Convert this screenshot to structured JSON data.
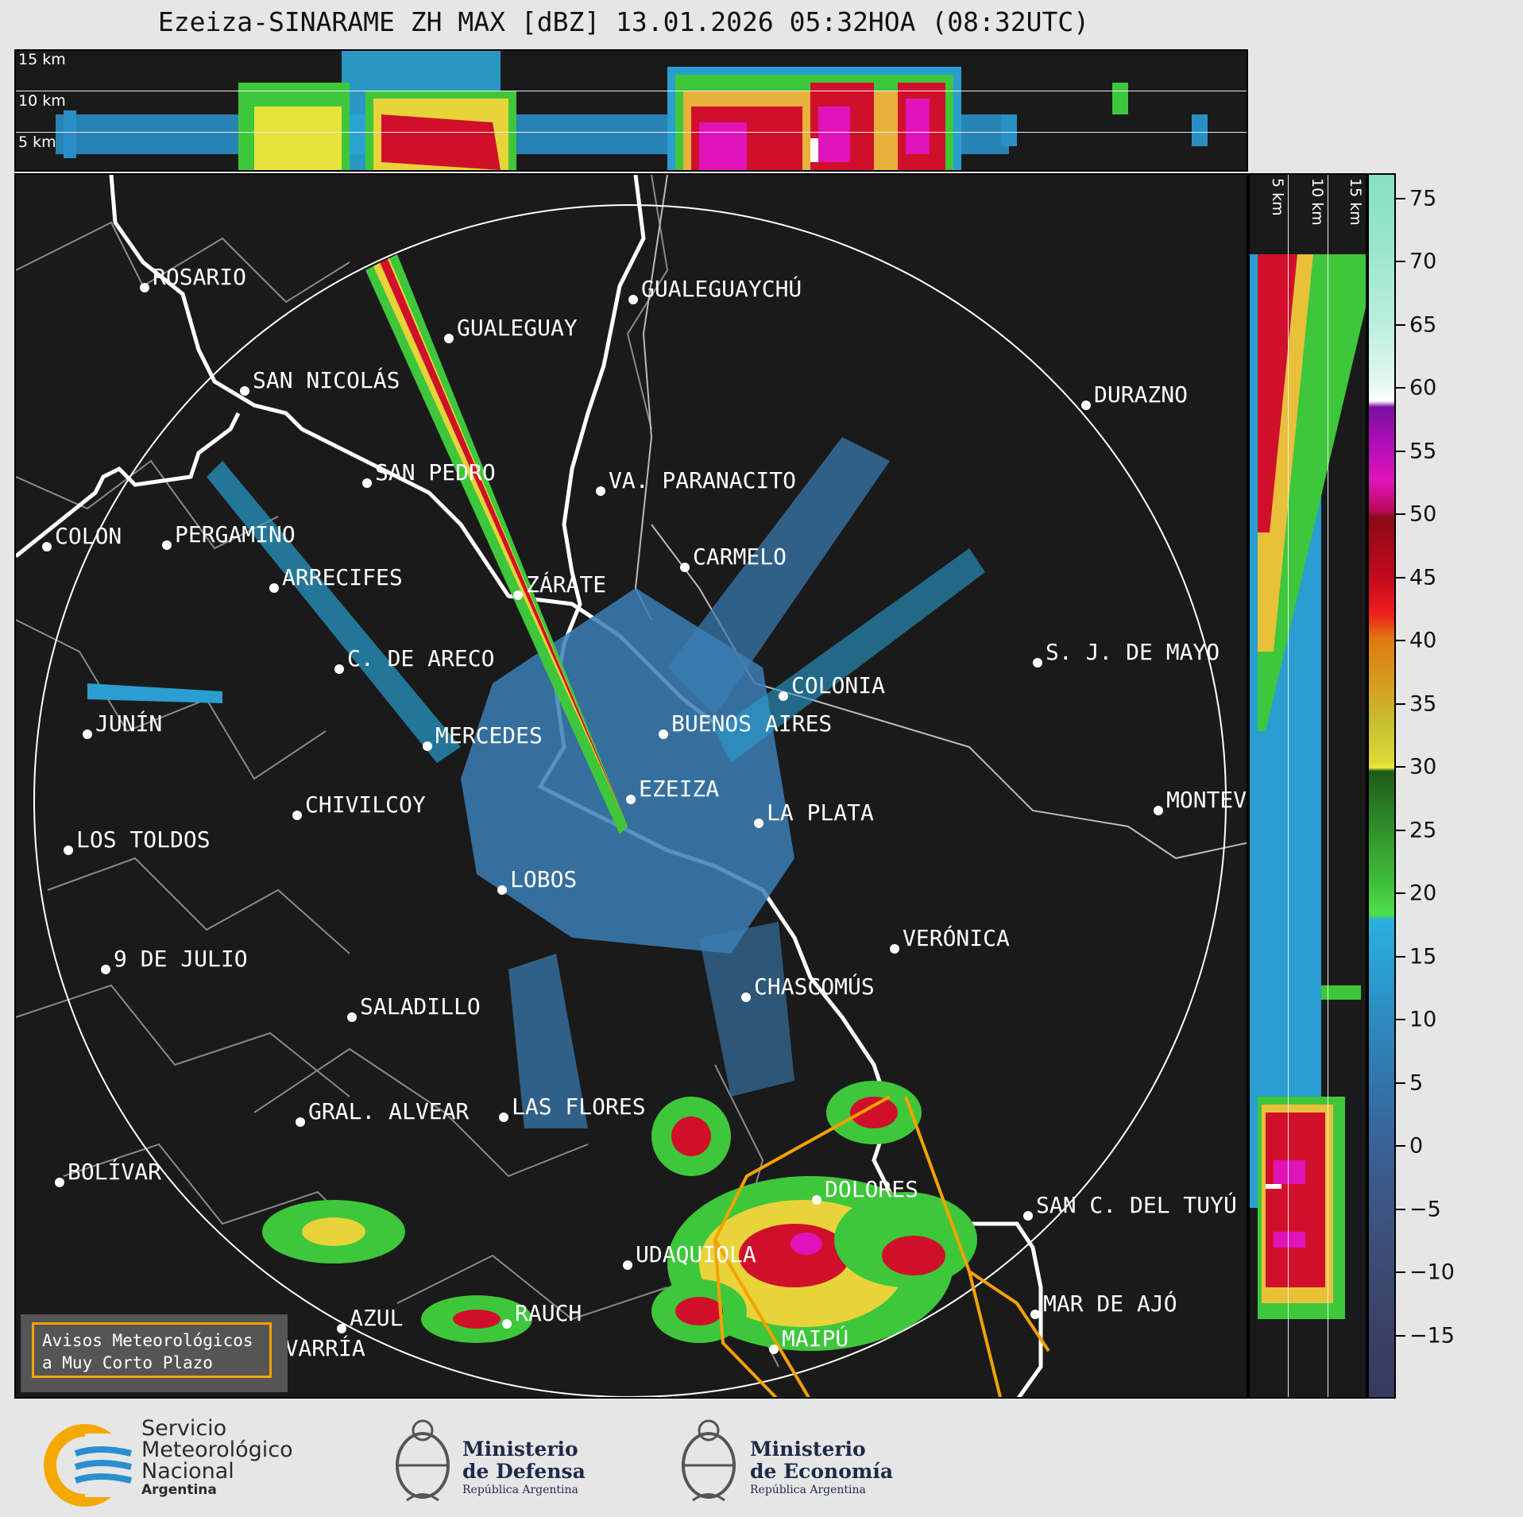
{
  "title": "Ezeiza-SINARAME ZH MAX [dBZ] 13.01.2026 05:32HOA (08:32UTC)",
  "height_labels": [
    "15 km",
    "10 km",
    "5 km"
  ],
  "cities": [
    {
      "name": "ROSARIO"
    },
    {
      "name": "GUALEGUAYCHÚ"
    },
    {
      "name": "GUALEGUAY"
    },
    {
      "name": "SAN NICOLÁS"
    },
    {
      "name": "DURAZNO"
    },
    {
      "name": "SAN PEDRO"
    },
    {
      "name": "VA. PARANACITO"
    },
    {
      "name": "COLON"
    },
    {
      "name": "PERGAMINO"
    },
    {
      "name": "CARMELO"
    },
    {
      "name": "ARRECIFES"
    },
    {
      "name": "ZÁRATE"
    },
    {
      "name": "S. J. DE MAYO"
    },
    {
      "name": "C. DE ARECO"
    },
    {
      "name": "COLONIA"
    },
    {
      "name": "JUNÍN"
    },
    {
      "name": "BUENOS AIRES"
    },
    {
      "name": "MERCEDES"
    },
    {
      "name": "EZEIZA"
    },
    {
      "name": "MONTEVIDEO"
    },
    {
      "name": "CHIVILCOY"
    },
    {
      "name": "LA PLATA"
    },
    {
      "name": "LOS TOLDOS"
    },
    {
      "name": "LOBOS"
    },
    {
      "name": "VERÓNICA"
    },
    {
      "name": "9 DE JULIO"
    },
    {
      "name": "CHASCOMÚS"
    },
    {
      "name": "SALADILLO"
    },
    {
      "name": "GRAL. ALVEAR"
    },
    {
      "name": "LAS FLORES"
    },
    {
      "name": "BOLÍVAR"
    },
    {
      "name": "DOLORES"
    },
    {
      "name": "SAN C. DEL TUYÚ"
    },
    {
      "name": "UDAQUIOLA"
    },
    {
      "name": "MAR DE AJÓ"
    },
    {
      "name": "AZUL"
    },
    {
      "name": "RAUCH"
    },
    {
      "name": "OLAVARRÍA"
    },
    {
      "name": "MAIPÚ"
    }
  ],
  "colorbar": {
    "ticks": [
      "75",
      "70",
      "65",
      "60",
      "55",
      "50",
      "45",
      "40",
      "35",
      "30",
      "25",
      "20",
      "15",
      "10",
      "5",
      "0",
      "−5",
      "−10",
      "−15"
    ],
    "range": [
      -20,
      77
    ]
  },
  "notice": {
    "line1": "Avisos Meteorológicos",
    "line2": "a Muy Corto Plazo"
  },
  "logos": {
    "smn_line1": "Servicio",
    "smn_line2": "Meteorológico",
    "smn_line3": "Nacional",
    "smn_line4": "Argentina",
    "defensa_line1": "Ministerio",
    "defensa_line2": "de Defensa",
    "defensa_line3": "República Argentina",
    "economia_line1": "Ministerio",
    "economia_line2": "de Economía",
    "economia_line3": "República Argentina"
  }
}
